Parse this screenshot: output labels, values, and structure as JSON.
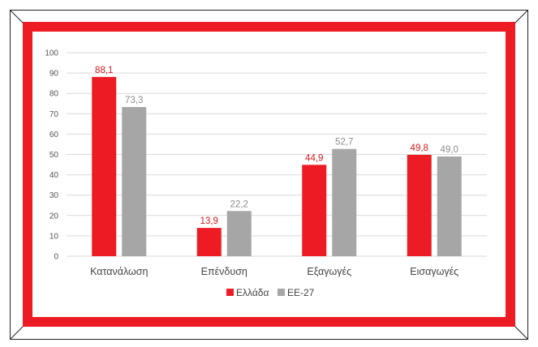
{
  "chart_data": {
    "type": "bar",
    "categories": [
      "Κατανάλωση",
      "Επένδυση",
      "Εξαγωγές",
      "Εισαγωγές"
    ],
    "series": [
      {
        "name": "Ελλάδα",
        "color": "#ed1c24",
        "values": [
          88.1,
          13.9,
          44.9,
          49.8
        ],
        "labels": [
          "88,1",
          "13,9",
          "44,9",
          "49,8"
        ]
      },
      {
        "name": "ΕΕ-27",
        "color": "#a6a6a6",
        "values": [
          73.3,
          22.2,
          52.7,
          49.0
        ],
        "labels": [
          "73,3",
          "22,2",
          "52,7",
          "49,0"
        ]
      }
    ],
    "title": "",
    "xlabel": "",
    "ylabel": "",
    "ylim": [
      0,
      100
    ],
    "yticks": [
      "0",
      "10",
      "20",
      "30",
      "40",
      "50",
      "60",
      "70",
      "80",
      "90",
      "100"
    ],
    "grid": true,
    "legend_position": "bottom-center"
  },
  "colors": {
    "frame_border": "#ed1c24",
    "grid": "#d9d9d9",
    "greece": "#ed1c24",
    "eu27": "#a6a6a6"
  }
}
